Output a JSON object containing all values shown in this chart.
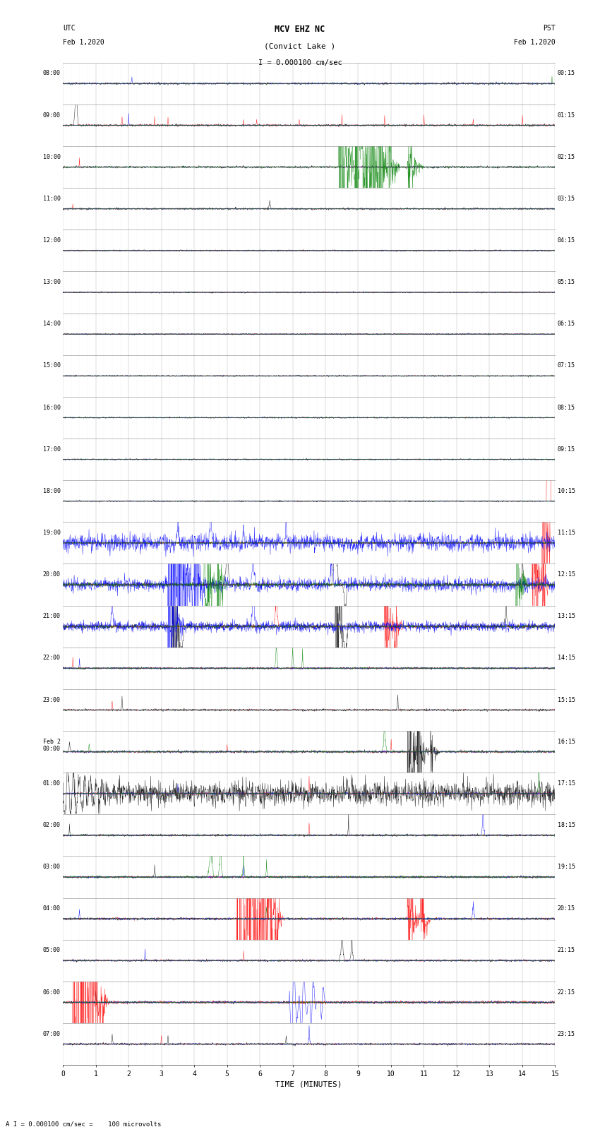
{
  "title_line1": "MCV EHZ NC",
  "title_line2": "(Convict Lake )",
  "title_scale": "I = 0.000100 cm/sec",
  "left_label_top": "UTC",
  "left_label_date": "Feb 1,2020",
  "right_label_top": "PST",
  "right_label_date": "Feb 1,2020",
  "bottom_label": "TIME (MINUTES)",
  "bottom_note": "A I = 0.000100 cm/sec =    100 microvolts",
  "x_ticks": [
    0,
    1,
    2,
    3,
    4,
    5,
    6,
    7,
    8,
    9,
    10,
    11,
    12,
    13,
    14,
    15
  ],
  "utc_labels": [
    "08:00",
    "09:00",
    "10:00",
    "11:00",
    "12:00",
    "13:00",
    "14:00",
    "15:00",
    "16:00",
    "17:00",
    "18:00",
    "19:00",
    "20:00",
    "21:00",
    "22:00",
    "23:00",
    "Feb 2\n00:00",
    "01:00",
    "02:00",
    "03:00",
    "04:00",
    "05:00",
    "06:00",
    "07:00"
  ],
  "pst_labels": [
    "00:15",
    "01:15",
    "02:15",
    "03:15",
    "04:15",
    "05:15",
    "06:15",
    "07:15",
    "08:15",
    "09:15",
    "10:15",
    "11:15",
    "12:15",
    "13:15",
    "14:15",
    "15:15",
    "16:15",
    "17:15",
    "18:15",
    "19:15",
    "20:15",
    "21:15",
    "22:15",
    "23:15"
  ],
  "num_rows": 24,
  "bg_color": "#ffffff",
  "grid_color": "#888888",
  "fig_width": 8.5,
  "fig_height": 16.13
}
